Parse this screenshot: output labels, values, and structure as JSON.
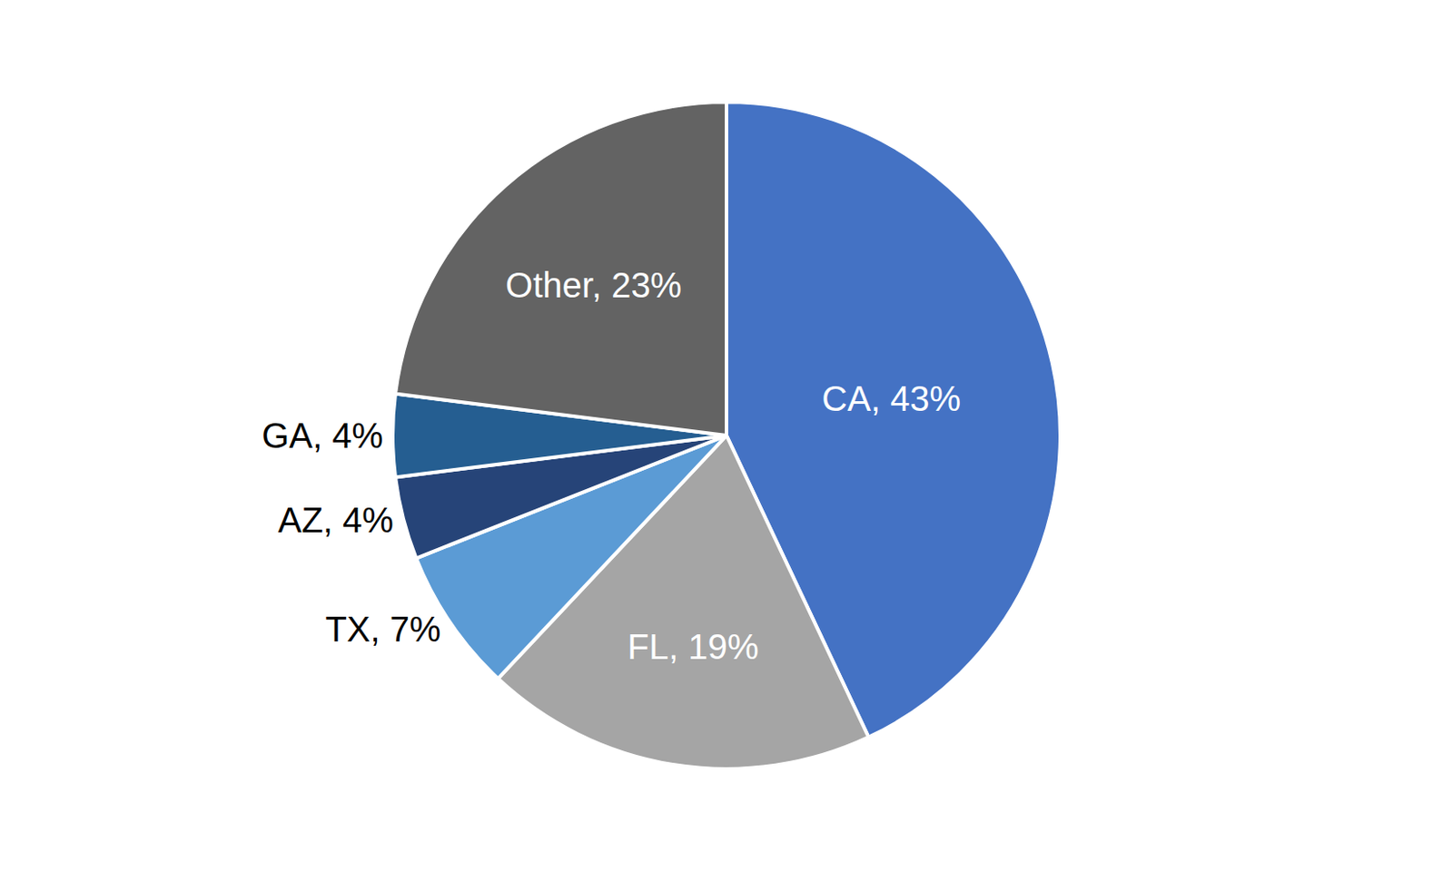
{
  "chart_data": {
    "type": "pie",
    "categories": [
      "CA",
      "FL",
      "TX",
      "AZ",
      "GA",
      "Other"
    ],
    "values": [
      43,
      19,
      7,
      4,
      4,
      23
    ],
    "value_labels": [
      "CA, 43%",
      "FL, 19%",
      "TX, 7%",
      "AZ, 4%",
      "GA, 4%",
      "Other, 23%"
    ],
    "data_labels": true,
    "colors": [
      "#4472c4",
      "#a5a5a5",
      "#5b9bd5",
      "#264478",
      "#255e91",
      "#636363"
    ]
  }
}
